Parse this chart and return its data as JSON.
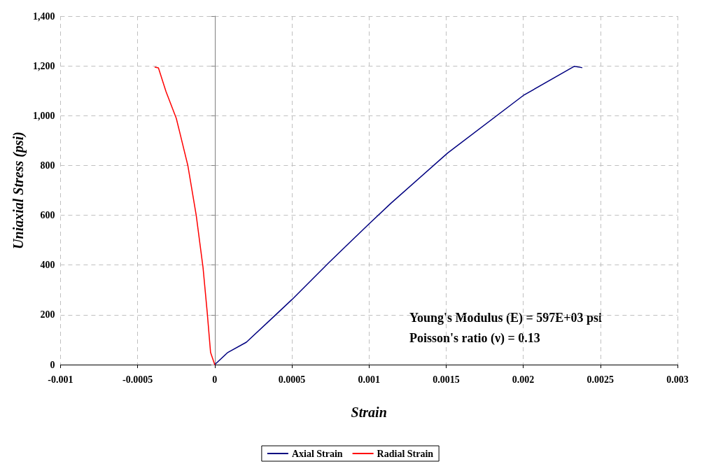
{
  "chart_data": {
    "type": "line",
    "xlabel": "Strain",
    "ylabel": "Uniaxial Stress (psi)",
    "xlim": [
      -0.001,
      0.003
    ],
    "xticks": [
      -0.001,
      -0.0005,
      0,
      0.0005,
      0.001,
      0.0015,
      0.002,
      0.0025,
      0.003
    ],
    "ylim": [
      0,
      1400
    ],
    "yticks": [
      {
        "value": 0,
        "label": "0"
      },
      {
        "value": 200,
        "label": "200"
      },
      {
        "value": 400,
        "label": "400"
      },
      {
        "value": 600,
        "label": "600"
      },
      {
        "value": 800,
        "label": "800"
      },
      {
        "value": 1000,
        "label": "1,000"
      },
      {
        "value": 1200,
        "label": "1,200"
      },
      {
        "value": 1400,
        "label": "1,400"
      }
    ],
    "grid": true,
    "legend": "bottom",
    "marker": "none",
    "line_style": "solid",
    "annotations": [
      "Young's Modulus (E) = 597E+03 psi",
      "Poisson's ratio (ν) = 0.13"
    ],
    "series": [
      {
        "name": "Axial Strain",
        "color": "#000080",
        "x": [
          0,
          8.5e-05,
          0.000205,
          0.000383,
          0.0005,
          0.00074,
          0.001,
          0.00114,
          0.00151,
          0.002,
          0.00233,
          0.00238
        ],
        "values": [
          0,
          49,
          90,
          193,
          261,
          410,
          565,
          647,
          850,
          1081,
          1198,
          1193
        ]
      },
      {
        "name": "Radial Strain",
        "color": "#ff0000",
        "x": [
          0,
          -2.7e-05,
          -4.9e-05,
          -7.6e-05,
          -0.00012,
          -0.000174,
          -0.000249,
          -0.000316,
          -0.000365,
          -0.000387
        ],
        "values": [
          0,
          49,
          212,
          391,
          600,
          799,
          989,
          1097,
          1192,
          1195
        ]
      }
    ]
  }
}
